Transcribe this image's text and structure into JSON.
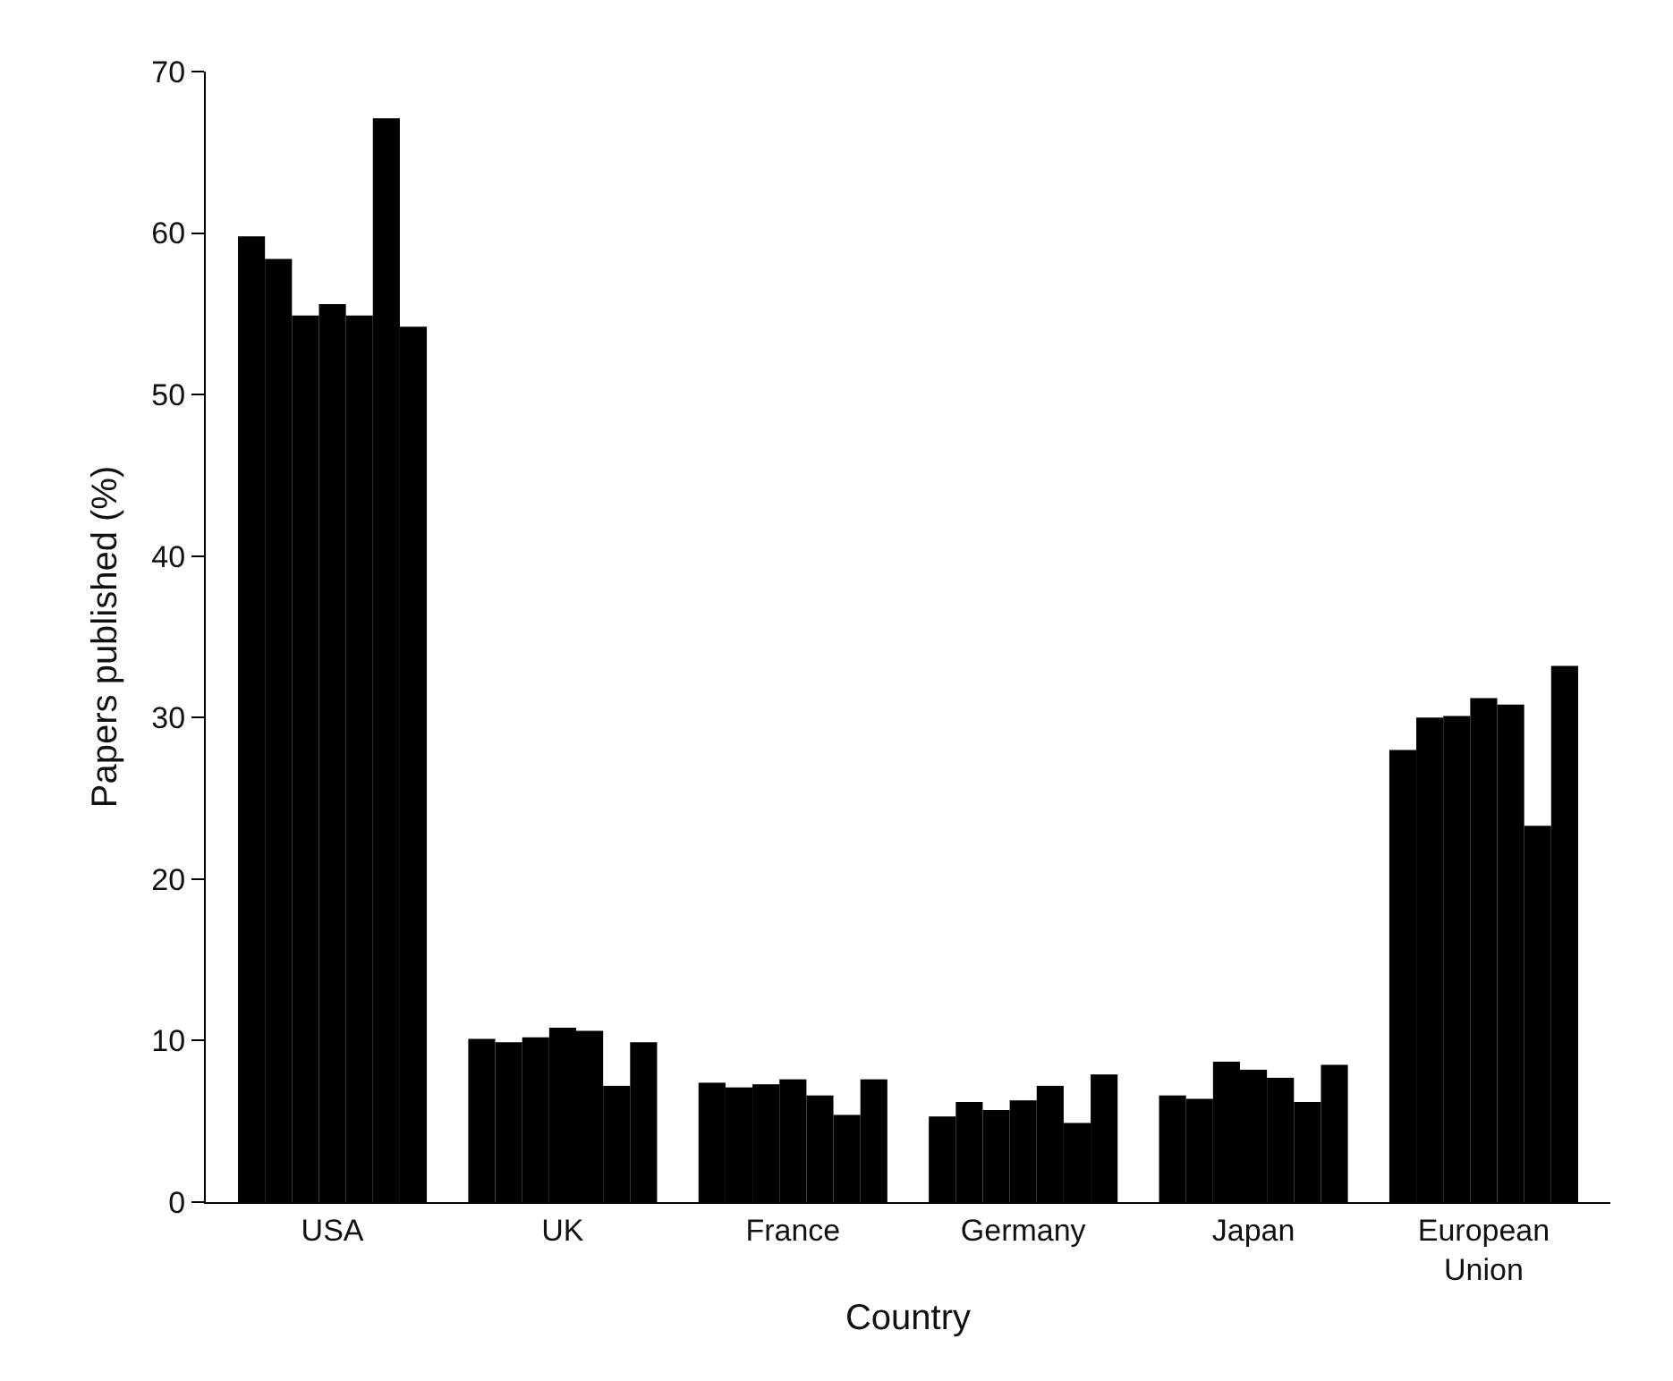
{
  "chart_data": {
    "type": "bar",
    "xlabel": "Country",
    "ylabel": "Papers published (%)",
    "categories": [
      "USA",
      "UK",
      "France",
      "Germany",
      "Japan",
      "European Union"
    ],
    "series": [
      {
        "color": "#000000",
        "values": [
          59.8,
          10.1,
          7.4,
          5.3,
          6.6,
          28.0
        ]
      },
      {
        "color": "#000000",
        "values": [
          58.4,
          9.9,
          7.1,
          6.2,
          6.4,
          30.0
        ]
      },
      {
        "color": "#000000",
        "values": [
          54.9,
          10.2,
          7.3,
          5.7,
          8.7,
          30.1
        ]
      },
      {
        "color": "#000000",
        "values": [
          55.6,
          10.8,
          7.6,
          6.3,
          8.2,
          31.2
        ]
      },
      {
        "color": "#000000",
        "values": [
          54.9,
          10.6,
          6.6,
          7.2,
          7.7,
          30.8
        ]
      },
      {
        "color": "#000000",
        "values": [
          67.1,
          7.2,
          5.4,
          4.9,
          6.2,
          23.3
        ]
      },
      {
        "color": "#000000",
        "values": [
          54.2,
          9.9,
          7.6,
          7.9,
          8.5,
          33.2
        ]
      }
    ],
    "ylim": [
      0,
      70
    ],
    "yticks": [
      0,
      10,
      20,
      30,
      40,
      50,
      60,
      70
    ],
    "grid": false
  }
}
